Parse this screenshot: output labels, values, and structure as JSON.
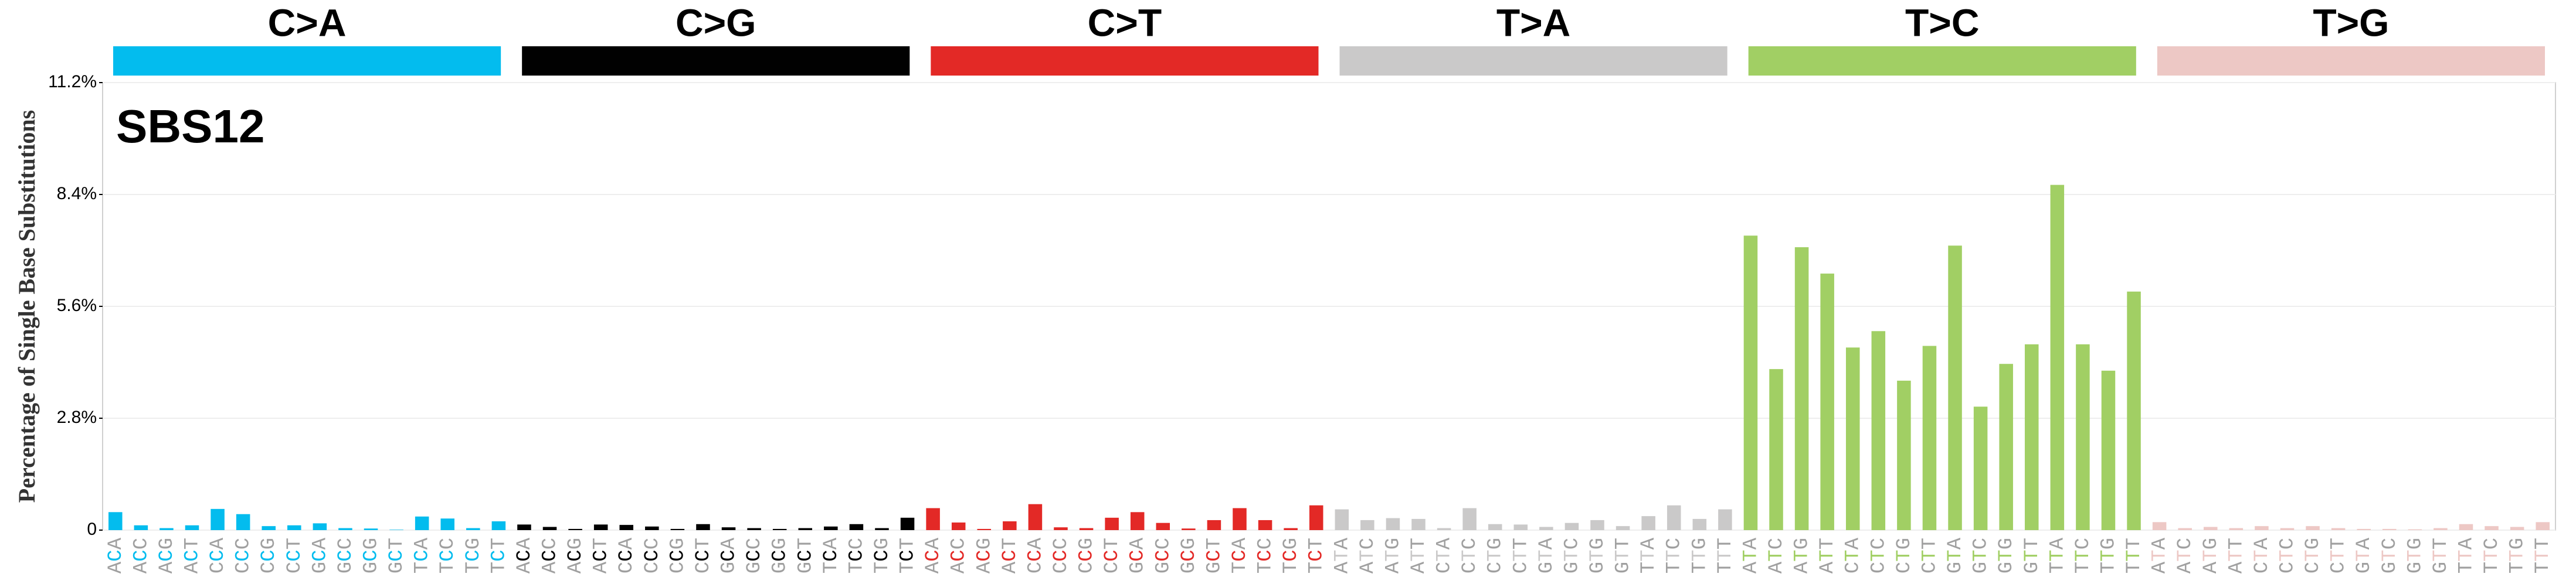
{
  "chart_data": {
    "type": "bar",
    "title": "SBS12",
    "y_label": "Percentage of Single Base Substitutions",
    "ylim": [
      0,
      11.2
    ],
    "yticks": [
      0,
      {
        "value": 2.8,
        "label": "2.8%"
      },
      {
        "value": 5.6,
        "label": "5.6%"
      },
      {
        "value": 8.4,
        "label": "8.4%"
      },
      {
        "value": 11.2,
        "label": "11.2%"
      }
    ],
    "grid": true,
    "series": [
      {
        "name": "C>A",
        "color": "#03bcee",
        "categories": [
          "ACA",
          "ACC",
          "ACG",
          "ACT",
          "CCA",
          "CCC",
          "CCG",
          "CCT",
          "GCA",
          "GCC",
          "GCG",
          "GCT",
          "TCA",
          "TCC",
          "TCG",
          "TCT"
        ],
        "values": [
          0.45,
          0.12,
          0.05,
          0.12,
          0.53,
          0.4,
          0.1,
          0.12,
          0.17,
          0.05,
          0.04,
          0.01,
          0.34,
          0.29,
          0.05,
          0.22
        ]
      },
      {
        "name": "C>G",
        "color": "#010101",
        "categories": [
          "ACA",
          "ACC",
          "ACG",
          "ACT",
          "CCA",
          "CCC",
          "CCG",
          "CCT",
          "GCA",
          "GCC",
          "GCG",
          "GCT",
          "TCA",
          "TCC",
          "TCG",
          "TCT"
        ],
        "values": [
          0.14,
          0.08,
          0.03,
          0.14,
          0.13,
          0.09,
          0.03,
          0.15,
          0.07,
          0.05,
          0.03,
          0.05,
          0.09,
          0.15,
          0.05,
          0.31
        ]
      },
      {
        "name": "C>T",
        "color": "#e32926",
        "categories": [
          "ACA",
          "ACC",
          "ACG",
          "ACT",
          "CCA",
          "CCC",
          "CCG",
          "CCT",
          "GCA",
          "GCC",
          "GCG",
          "GCT",
          "TCA",
          "TCC",
          "TCG",
          "TCT"
        ],
        "values": [
          0.55,
          0.19,
          0.03,
          0.22,
          0.65,
          0.07,
          0.05,
          0.31,
          0.45,
          0.18,
          0.04,
          0.25,
          0.55,
          0.25,
          0.05,
          0.62
        ]
      },
      {
        "name": "T>A",
        "color": "#cac9c9",
        "categories": [
          "ATA",
          "ATC",
          "ATG",
          "ATT",
          "CTA",
          "CTC",
          "CTG",
          "CTT",
          "GTA",
          "GTC",
          "GTG",
          "GTT",
          "TTA",
          "TTC",
          "TTG",
          "TTT"
        ],
        "values": [
          0.52,
          0.25,
          0.3,
          0.28,
          0.05,
          0.55,
          0.15,
          0.14,
          0.08,
          0.18,
          0.25,
          0.1,
          0.35,
          0.62,
          0.28,
          0.52
        ]
      },
      {
        "name": "T>C",
        "color": "#a1cf64",
        "categories": [
          "ATA",
          "ATC",
          "ATG",
          "ATT",
          "CTA",
          "CTC",
          "CTG",
          "CTT",
          "GTA",
          "GTC",
          "GTG",
          "GTT",
          "TTA",
          "TTC",
          "TTG",
          "TTT"
        ],
        "values": [
          7.37,
          4.03,
          7.08,
          6.42,
          4.57,
          4.98,
          3.74,
          4.61,
          7.12,
          3.09,
          4.16,
          4.65,
          8.64,
          4.65,
          3.99,
          5.97
        ]
      },
      {
        "name": "T>G",
        "color": "#edc8c5",
        "categories": [
          "ATA",
          "ATC",
          "ATG",
          "ATT",
          "CTA",
          "CTC",
          "CTG",
          "CTT",
          "GTA",
          "GTC",
          "GTG",
          "GTT",
          "TTA",
          "TTC",
          "TTG",
          "TTT"
        ],
        "values": [
          0.2,
          0.05,
          0.08,
          0.05,
          0.1,
          0.05,
          0.1,
          0.05,
          0.03,
          0.03,
          0.02,
          0.05,
          0.15,
          0.1,
          0.08,
          0.2
        ]
      }
    ]
  }
}
